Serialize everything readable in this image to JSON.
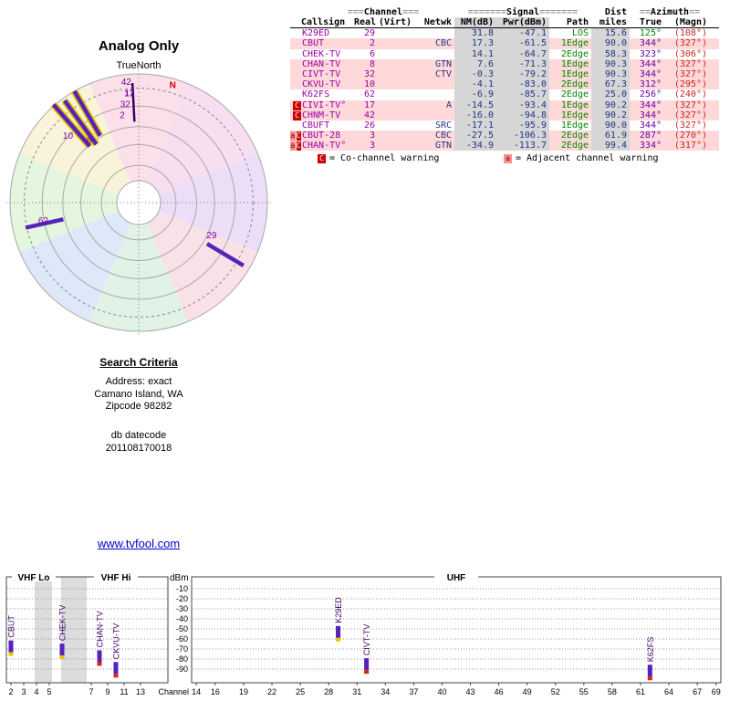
{
  "page": {
    "link": "www.tvfool.com"
  },
  "search_criteria": {
    "heading": "Search Criteria",
    "address_line": "Address: exact",
    "location_line": "Camano Island, WA",
    "zip_line": "Zipcode 98282",
    "datecode_label": "db datecode",
    "datecode_value": "201108170018"
  },
  "colors": {
    "row_pink": "#ffd9d9",
    "cell_gray": "#d6d6d6",
    "bar_purple": "#5522bb",
    "casing_yellow": "#e8c800",
    "label_purple": "#7a00aa",
    "path_green": "#008800",
    "value_navy": "#223388",
    "callsign_purple": "#9900aa",
    "magn_red": "#cc2222",
    "warn_red": "#cc0000",
    "warn_adj_pink": "#ff9090",
    "link_blue": "#0000cc",
    "north_red": "#cc0000"
  },
  "table": {
    "group_headers": {
      "channel": "===Channel===",
      "signal": "=======Signal=======",
      "dist": "Dist",
      "azimuth": "==Azimuth=="
    },
    "columns": [
      "Callsign",
      "Real",
      "(Virt)",
      "Netwk",
      "NM(dB)",
      "Pwr(dBm)",
      "Path",
      "miles",
      "True",
      "(Magn)"
    ],
    "rows": [
      {
        "warn": [],
        "callsign": "K29ED",
        "real": "29",
        "virt": "",
        "netwk": "",
        "nm": "31.8",
        "pwr": "-47.1",
        "path": "LOS",
        "miles": "15.6",
        "true": "125°",
        "magn": "(108°)",
        "bg": "white",
        "true_green": true
      },
      {
        "warn": [],
        "callsign": "CBUT",
        "real": "2",
        "virt": "",
        "netwk": "CBC",
        "nm": "17.3",
        "pwr": "-61.5",
        "path": "1Edge",
        "miles": "90.0",
        "true": "344°",
        "magn": "(327°)",
        "bg": "pink"
      },
      {
        "warn": [],
        "callsign": "CHEK-TV",
        "real": "6",
        "virt": "",
        "netwk": "",
        "nm": "14.1",
        "pwr": "-64.7",
        "path": "2Edge",
        "miles": "58.3",
        "true": "323°",
        "magn": "(306°)",
        "bg": "white"
      },
      {
        "warn": [],
        "callsign": "CHAN-TV",
        "real": "8",
        "virt": "",
        "netwk": "GTN",
        "nm": "7.6",
        "pwr": "-71.3",
        "path": "1Edge",
        "miles": "90.3",
        "true": "344°",
        "magn": "(327°)",
        "bg": "pink"
      },
      {
        "warn": [],
        "callsign": "CIVT-TV",
        "real": "32",
        "virt": "",
        "netwk": "CTV",
        "nm": "-0.3",
        "pwr": "-79.2",
        "path": "1Edge",
        "miles": "90.3",
        "true": "344°",
        "magn": "(327°)",
        "bg": "pink"
      },
      {
        "warn": [],
        "callsign": "CKVU-TV",
        "real": "10",
        "virt": "",
        "netwk": "",
        "nm": "-4.1",
        "pwr": "-83.0",
        "path": "2Edge",
        "miles": "67.3",
        "true": "312°",
        "magn": "(295°)",
        "bg": "pink"
      },
      {
        "warn": [],
        "callsign": "K62FS",
        "real": "62",
        "virt": "",
        "netwk": "",
        "nm": "-6.9",
        "pwr": "-85.7",
        "path": "2Edge",
        "miles": "25.0",
        "true": "256°",
        "magn": "(240°)",
        "bg": "white"
      },
      {
        "warn": [
          "C"
        ],
        "callsign": "CIVI-TV°",
        "real": "17",
        "virt": "",
        "netwk": "A",
        "nm": "-14.5",
        "pwr": "-93.4",
        "path": "1Edge",
        "miles": "90.2",
        "true": "344°",
        "magn": "(327°)",
        "bg": "pink"
      },
      {
        "warn": [
          "C"
        ],
        "callsign": "CHNM-TV",
        "real": "42",
        "virt": "",
        "netwk": "",
        "nm": "-16.0",
        "pwr": "-94.8",
        "path": "1Edge",
        "miles": "90.2",
        "true": "344°",
        "magn": "(327°)",
        "bg": "pink"
      },
      {
        "warn": [],
        "callsign": "CBUFT",
        "real": "26",
        "virt": "",
        "netwk": "SRC",
        "nm": "-17.1",
        "pwr": "-95.9",
        "path": "1Edge",
        "miles": "90.0",
        "true": "344°",
        "magn": "(327°)",
        "bg": "white"
      },
      {
        "warn": [
          "a",
          "C"
        ],
        "callsign": "CBUT-28",
        "real": "3",
        "virt": "",
        "netwk": "CBC",
        "nm": "-27.5",
        "pwr": "-106.3",
        "path": "2Edge",
        "miles": "61.9",
        "true": "287°",
        "magn": "(270°)",
        "bg": "pink"
      },
      {
        "warn": [
          "a",
          "C"
        ],
        "callsign": "CHAN-TV°",
        "real": "3",
        "virt": "",
        "netwk": "GTN",
        "nm": "-34.9",
        "pwr": "-113.7",
        "path": "2Edge",
        "miles": "99.4",
        "true": "334°",
        "magn": "(317°)",
        "bg": "pink"
      }
    ],
    "legend": {
      "co_symbol": "C",
      "co_text": "= Co-channel warning",
      "adj_symbol": "a",
      "adj_text": "= Adjacent channel warning"
    }
  },
  "chart_data": [
    {
      "type": "radar",
      "title": "Analog Only",
      "subtitle": "TrueNorth",
      "north_label": "N",
      "sector_colors": [
        "#f9d0dd",
        "#f3cde9",
        "#e3cdf5",
        "#f6d2da",
        "#cfecd9",
        "#ccdcf6",
        "#d6f2cc",
        "#f6eec4"
      ],
      "rings": [
        1.0,
        0.75,
        0.59,
        0.45,
        0.29
      ],
      "dashed_ring": 0.89,
      "inner_hole": 0.17,
      "lines": [
        {
          "az": 319,
          "r0": 0.58,
          "r1": 1.01,
          "casing": true
        },
        {
          "az": 324,
          "r0": 0.56,
          "r1": 0.98,
          "casing": true
        },
        {
          "az": 330,
          "r0": 0.6,
          "r1": 1.0,
          "casing": true
        },
        {
          "az": 357,
          "r0": 0.63,
          "r1": 0.93,
          "casing": false,
          "width": 2.5,
          "color": "#3a0066"
        },
        {
          "az": 257.5,
          "r0": 0.6,
          "r1": 0.9,
          "casing": false
        },
        {
          "az": 121,
          "r0": 0.62,
          "r1": 0.95,
          "casing": false
        }
      ],
      "labels": [
        {
          "text": "N",
          "az": 16.5,
          "r": 0.93,
          "color": "#cc0000",
          "bold": true
        },
        {
          "text": "42",
          "az": 354,
          "r": 0.92
        },
        {
          "text": "17",
          "az": 355,
          "r": 0.83,
          "bold": true
        },
        {
          "text": "32",
          "az": 352,
          "r": 0.75
        },
        {
          "text": "2",
          "az": 349,
          "r": 0.67
        },
        {
          "text": "10",
          "az": 312,
          "r": 0.74
        },
        {
          "text": "6",
          "az": 320,
          "r": 0.6
        },
        {
          "text": "62",
          "az": 257.5,
          "r": 0.76
        },
        {
          "text": "29",
          "az": 116,
          "r": 0.63
        }
      ]
    },
    {
      "type": "bar",
      "ylabel": "dBm",
      "xlabel": "Channel",
      "ylim": [
        -95,
        -5
      ],
      "sections": [
        "VHF Lo",
        "VHF Hi",
        "UHF"
      ],
      "yticks": [
        -10,
        -20,
        -30,
        -40,
        -50,
        -60,
        -70,
        -80,
        -90
      ],
      "vhf_lo_ticks": [
        2,
        3,
        4,
        5
      ],
      "vhf_hi_ticks": [
        7,
        9,
        11,
        13
      ],
      "uhf_ticks": [
        14,
        16,
        19,
        22,
        25,
        28,
        31,
        34,
        37,
        40,
        43,
        46,
        49,
        52,
        55,
        58,
        61,
        64,
        67,
        69
      ],
      "bars": [
        {
          "callsign": "CBUT",
          "channel": 2,
          "power_dbm": -61.5,
          "tip": "#e8c800"
        },
        {
          "callsign": "CHEK-TV",
          "channel": 6,
          "power_dbm": -64.7,
          "tip": "#e8c800"
        },
        {
          "callsign": "CHAN-TV",
          "channel": 8,
          "power_dbm": -71.3,
          "tip": "#dd2200"
        },
        {
          "callsign": "CKVU-TV",
          "channel": 10,
          "power_dbm": -83.0,
          "tip": "#dd2200"
        },
        {
          "callsign": "K29ED",
          "channel": 29,
          "power_dbm": -47.1,
          "tip": "#e8c800"
        },
        {
          "callsign": "CIVT-TV",
          "channel": 32,
          "power_dbm": -79.2,
          "tip": "#dd2200"
        },
        {
          "callsign": "K62FS",
          "channel": 62,
          "power_dbm": -85.7,
          "tip": "#dd2200"
        }
      ]
    }
  ]
}
